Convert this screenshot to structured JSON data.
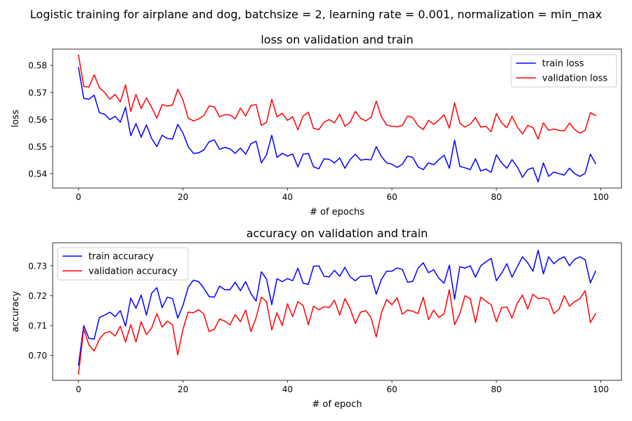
{
  "figure": {
    "suptitle": "Logistic training for airplane and dog, batchsize = 2, learning rate = 0.001, normalization = min_max"
  },
  "chart_data": [
    {
      "type": "line",
      "title": "loss on validation and train",
      "xlabel": "# of epochs",
      "ylabel": "loss",
      "xlim": [
        -4.95,
        103.95
      ],
      "ylim": [
        0.5347,
        0.586
      ],
      "xticks": [
        0,
        20,
        40,
        60,
        80,
        100
      ],
      "yticks": [
        0.54,
        0.55,
        0.56,
        0.57,
        0.58
      ],
      "ytick_labels": [
        "0.54",
        "0.55",
        "0.56",
        "0.57",
        "0.58"
      ],
      "grid": false,
      "legend": "top-right",
      "series": [
        {
          "name": "train loss",
          "color": "#0000ff",
          "values": [
            0.5792,
            0.5678,
            0.5675,
            0.569,
            0.5625,
            0.562,
            0.56,
            0.5612,
            0.559,
            0.5645,
            0.554,
            0.5585,
            0.5535,
            0.558,
            0.553,
            0.55,
            0.5542,
            0.553,
            0.5528,
            0.5582,
            0.555,
            0.55,
            0.5475,
            0.5477,
            0.5488,
            0.5518,
            0.5525,
            0.549,
            0.5497,
            0.5492,
            0.5475,
            0.5495,
            0.5472,
            0.551,
            0.552,
            0.544,
            0.547,
            0.5542,
            0.546,
            0.5475,
            0.5465,
            0.5473,
            0.5425,
            0.5472,
            0.5475,
            0.5425,
            0.5418,
            0.5455,
            0.5453,
            0.544,
            0.5458,
            0.542,
            0.5452,
            0.5472,
            0.545,
            0.5453,
            0.5451,
            0.55,
            0.5463,
            0.544,
            0.5435,
            0.5423,
            0.5435,
            0.5465,
            0.546,
            0.5425,
            0.5415,
            0.544,
            0.5433,
            0.5452,
            0.5468,
            0.542,
            0.5524,
            0.5427,
            0.5422,
            0.5415,
            0.5455,
            0.541,
            0.5417,
            0.5405,
            0.547,
            0.544,
            0.542,
            0.5452,
            0.5425,
            0.5387,
            0.5415,
            0.5422,
            0.537,
            0.544,
            0.539,
            0.5406,
            0.54,
            0.5395,
            0.542,
            0.54,
            0.539,
            0.5402,
            0.5472,
            0.5437
          ]
        },
        {
          "name": "validation loss",
          "color": "#ff0000",
          "values": [
            0.5838,
            0.5722,
            0.572,
            0.5765,
            0.5718,
            0.57,
            0.5675,
            0.5693,
            0.5665,
            0.5728,
            0.563,
            0.5693,
            0.564,
            0.568,
            0.5645,
            0.5605,
            0.5655,
            0.565,
            0.5653,
            0.5712,
            0.5672,
            0.5605,
            0.5595,
            0.5602,
            0.5615,
            0.565,
            0.5647,
            0.561,
            0.5618,
            0.5617,
            0.5603,
            0.5642,
            0.5613,
            0.5652,
            0.5655,
            0.5578,
            0.559,
            0.5675,
            0.561,
            0.5623,
            0.5597,
            0.561,
            0.5562,
            0.5613,
            0.5627,
            0.5567,
            0.5563,
            0.559,
            0.56,
            0.5588,
            0.562,
            0.5575,
            0.559,
            0.563,
            0.5605,
            0.5595,
            0.5608,
            0.5668,
            0.561,
            0.558,
            0.5575,
            0.5573,
            0.5578,
            0.5613,
            0.5607,
            0.5577,
            0.5563,
            0.5597,
            0.5582,
            0.5598,
            0.5618,
            0.5568,
            0.5662,
            0.5587,
            0.5572,
            0.5583,
            0.5607,
            0.5572,
            0.5575,
            0.5555,
            0.5622,
            0.5588,
            0.557,
            0.5612,
            0.5573,
            0.5547,
            0.5578,
            0.557,
            0.5528,
            0.5588,
            0.556,
            0.5565,
            0.556,
            0.5558,
            0.5587,
            0.5563,
            0.555,
            0.556,
            0.5625,
            0.5615
          ]
        }
      ]
    },
    {
      "type": "line",
      "title": "accuracy on validation and train",
      "xlabel": "# of epoch",
      "ylabel": "accuracy",
      "xlim": [
        -4.95,
        103.95
      ],
      "ylim": [
        0.6917,
        0.7377
      ],
      "xticks": [
        0,
        20,
        40,
        60,
        80,
        100
      ],
      "yticks": [
        0.7,
        0.71,
        0.72,
        0.73
      ],
      "ytick_labels": [
        "0.70",
        "0.71",
        "0.72",
        "0.73"
      ],
      "grid": false,
      "legend": "top-left",
      "series": [
        {
          "name": "train accuracy",
          "color": "#0000ff",
          "values": [
            0.6968,
            0.71,
            0.7057,
            0.7055,
            0.7127,
            0.7135,
            0.7145,
            0.713,
            0.715,
            0.7098,
            0.7192,
            0.7158,
            0.7202,
            0.7135,
            0.7208,
            0.7227,
            0.716,
            0.7195,
            0.719,
            0.7125,
            0.7168,
            0.7228,
            0.7252,
            0.7247,
            0.7225,
            0.7197,
            0.7195,
            0.7232,
            0.722,
            0.722,
            0.7245,
            0.7217,
            0.7247,
            0.7207,
            0.7182,
            0.728,
            0.7255,
            0.717,
            0.7257,
            0.7247,
            0.7257,
            0.725,
            0.7292,
            0.7242,
            0.7238,
            0.7298,
            0.73,
            0.7265,
            0.7263,
            0.7285,
            0.7265,
            0.7295,
            0.7263,
            0.725,
            0.7265,
            0.7265,
            0.7267,
            0.7205,
            0.7255,
            0.7282,
            0.7282,
            0.7293,
            0.7288,
            0.7245,
            0.7248,
            0.7292,
            0.731,
            0.7277,
            0.7287,
            0.7258,
            0.7242,
            0.7302,
            0.7188,
            0.7297,
            0.7292,
            0.73,
            0.7262,
            0.73,
            0.7313,
            0.7325,
            0.725,
            0.7275,
            0.7307,
            0.7262,
            0.7297,
            0.733,
            0.731,
            0.7282,
            0.7352,
            0.7273,
            0.733,
            0.7307,
            0.7322,
            0.733,
            0.73,
            0.7322,
            0.733,
            0.732,
            0.7243,
            0.7282
          ]
        },
        {
          "name": "validation accuracy",
          "color": "#ff0000",
          "values": [
            0.6938,
            0.7088,
            0.7035,
            0.7015,
            0.7055,
            0.7075,
            0.708,
            0.7065,
            0.7098,
            0.7045,
            0.7103,
            0.7045,
            0.7113,
            0.707,
            0.7092,
            0.714,
            0.7095,
            0.7115,
            0.7103,
            0.7002,
            0.7088,
            0.7145,
            0.7143,
            0.7153,
            0.7138,
            0.708,
            0.7088,
            0.7122,
            0.7115,
            0.7102,
            0.7137,
            0.7113,
            0.7152,
            0.708,
            0.7127,
            0.7195,
            0.718,
            0.7085,
            0.7143,
            0.71,
            0.7173,
            0.713,
            0.718,
            0.7167,
            0.7103,
            0.7165,
            0.7153,
            0.7163,
            0.716,
            0.7185,
            0.7135,
            0.719,
            0.7157,
            0.7107,
            0.7145,
            0.715,
            0.7127,
            0.7062,
            0.7143,
            0.7187,
            0.717,
            0.7193,
            0.7138,
            0.7152,
            0.7148,
            0.714,
            0.7195,
            0.712,
            0.7152,
            0.7127,
            0.714,
            0.722,
            0.7103,
            0.714,
            0.72,
            0.719,
            0.711,
            0.7195,
            0.7182,
            0.717,
            0.7113,
            0.716,
            0.7162,
            0.7125,
            0.7175,
            0.7202,
            0.7155,
            0.7205,
            0.719,
            0.7193,
            0.7187,
            0.714,
            0.7155,
            0.72,
            0.7165,
            0.718,
            0.719,
            0.7217,
            0.711,
            0.714
          ]
        }
      ]
    }
  ]
}
